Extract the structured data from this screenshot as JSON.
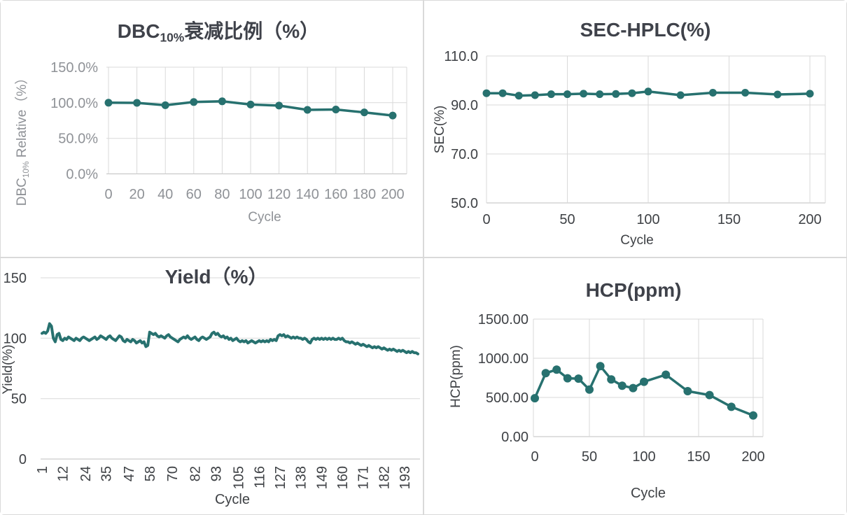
{
  "page": {
    "background": "#FFFFFF",
    "panel_border": "#D9D9D9",
    "grid_color": "#D9D9D9",
    "axis_color": "#BFBFBF",
    "series_color": "#27716F",
    "title_color": "#3F424A",
    "label_color_dark": "#3E4145",
    "label_color_light": "#8F9297"
  },
  "chart_data": [
    {
      "id": "dbc-decay",
      "type": "line",
      "title": "DBC10%衰减比例（%）",
      "title_parts": [
        {
          "t": "DBC"
        },
        {
          "t": "10%",
          "sub": true
        },
        {
          "t": "衰减比例（%）"
        }
      ],
      "xlabel": "Cycle",
      "ylabel": "DBC10% Relative（%）",
      "ylabel_parts": [
        {
          "t": "DBC"
        },
        {
          "t": "10%",
          "sub": true
        },
        {
          "t": " Relative（%）"
        }
      ],
      "categories": [
        0,
        20,
        40,
        60,
        80,
        100,
        120,
        140,
        160,
        180,
        200
      ],
      "values": [
        100.0,
        99.8,
        96.5,
        101.0,
        102.0,
        97.5,
        96.0,
        90.0,
        90.5,
        86.5,
        82.0
      ],
      "ylim": [
        0,
        150
      ],
      "yticks": [
        150,
        100,
        50,
        0
      ],
      "ytick_labels": [
        "150.0%",
        "100.0%",
        "50.0%",
        "0.0%"
      ],
      "grid": "both",
      "legend": "none",
      "markers": true
    },
    {
      "id": "sec-hplc",
      "type": "line",
      "title": "SEC-HPLC(%)",
      "xlabel": "Cycle",
      "ylabel": "SEC(%)",
      "x": [
        0,
        10,
        20,
        30,
        40,
        50,
        60,
        70,
        80,
        90,
        100,
        120,
        140,
        160,
        180,
        200
      ],
      "values": [
        94.8,
        94.8,
        93.8,
        94.0,
        94.4,
        94.4,
        94.6,
        94.4,
        94.5,
        94.8,
        95.5,
        94.0,
        95.0,
        95.0,
        94.3,
        94.6
      ],
      "xlim": [
        0,
        200
      ],
      "xticks": [
        0,
        50,
        100,
        150,
        200
      ],
      "ylim": [
        50,
        110
      ],
      "yticks": [
        110,
        90,
        70,
        50
      ],
      "ytick_labels": [
        "110.0",
        "90.0",
        "70.0",
        "50.0"
      ],
      "grid": "both",
      "legend": "none",
      "markers": true
    },
    {
      "id": "yield",
      "type": "line",
      "title": "Yield（%）",
      "xlabel": "Cycle",
      "ylabel": "Yield(%)",
      "x_start": 1,
      "values": [
        104,
        105,
        104,
        106,
        112,
        110,
        100,
        97,
        103,
        104,
        99,
        98,
        100,
        99,
        101,
        100,
        99,
        98,
        100,
        99,
        98,
        100,
        101,
        100,
        99,
        98,
        99,
        100,
        101,
        99,
        100,
        102,
        101,
        100,
        99,
        101,
        102,
        100,
        99,
        98,
        100,
        102,
        101,
        98,
        97,
        99,
        98,
        97,
        99,
        98,
        96,
        97,
        98,
        96,
        97,
        93,
        94,
        105,
        104,
        103,
        104,
        102,
        101,
        102,
        101,
        100,
        102,
        103,
        101,
        100,
        99,
        98,
        97,
        99,
        100,
        101,
        100,
        102,
        100,
        99,
        100,
        101,
        99,
        98,
        100,
        101,
        100,
        99,
        100,
        101,
        104,
        105,
        103,
        104,
        102,
        101,
        102,
        100,
        101,
        99,
        100,
        98,
        99,
        100,
        98,
        97,
        98,
        97,
        98,
        96,
        97,
        98,
        97,
        96,
        97,
        98,
        97,
        98,
        97,
        98,
        97,
        99,
        98,
        99,
        98,
        102,
        103,
        102,
        103,
        101,
        102,
        101,
        100,
        101,
        100,
        101,
        100,
        100,
        99,
        100,
        99,
        97,
        96,
        99,
        100,
        99,
        100,
        99,
        100,
        99,
        100,
        99,
        100,
        99,
        100,
        99,
        99,
        100,
        99,
        100,
        98,
        97,
        97,
        96,
        97,
        96,
        95,
        96,
        95,
        94,
        95,
        94,
        93,
        94,
        93,
        92,
        93,
        92,
        93,
        92,
        91,
        92,
        91,
        90,
        91,
        90,
        91,
        90,
        89,
        90,
        89,
        90,
        89,
        88,
        89,
        88,
        89,
        88,
        88,
        87
      ],
      "xlim": [
        1,
        200
      ],
      "xticks": [
        1,
        12,
        24,
        35,
        47,
        58,
        70,
        82,
        93,
        105,
        116,
        127,
        138,
        149,
        160,
        171,
        182,
        193
      ],
      "xticks_rotated": true,
      "ylim": [
        0,
        150
      ],
      "yticks": [
        150,
        100,
        50,
        0
      ],
      "ytick_labels": [
        "150",
        "100",
        "50",
        "0"
      ],
      "grid": "horizontal",
      "legend": "none",
      "markers": false
    },
    {
      "id": "hcp",
      "type": "line",
      "title": "HCP(ppm)",
      "xlabel": "Cycle",
      "ylabel": "HCP(ppm)",
      "x": [
        0,
        10,
        20,
        30,
        40,
        50,
        60,
        70,
        80,
        90,
        100,
        120,
        140,
        160,
        180,
        200
      ],
      "values": [
        490,
        810,
        855,
        745,
        740,
        600,
        900,
        730,
        650,
        620,
        700,
        790,
        580,
        530,
        380,
        270
      ],
      "xlim": [
        0,
        200
      ],
      "xticks": [
        0,
        50,
        100,
        150,
        200
      ],
      "ylim": [
        0,
        1500
      ],
      "yticks": [
        1500,
        1000,
        500,
        0
      ],
      "ytick_labels": [
        "1500.00",
        "1000.00",
        "500.00",
        "0.00"
      ],
      "grid": "both",
      "legend": "none",
      "markers": true
    }
  ]
}
